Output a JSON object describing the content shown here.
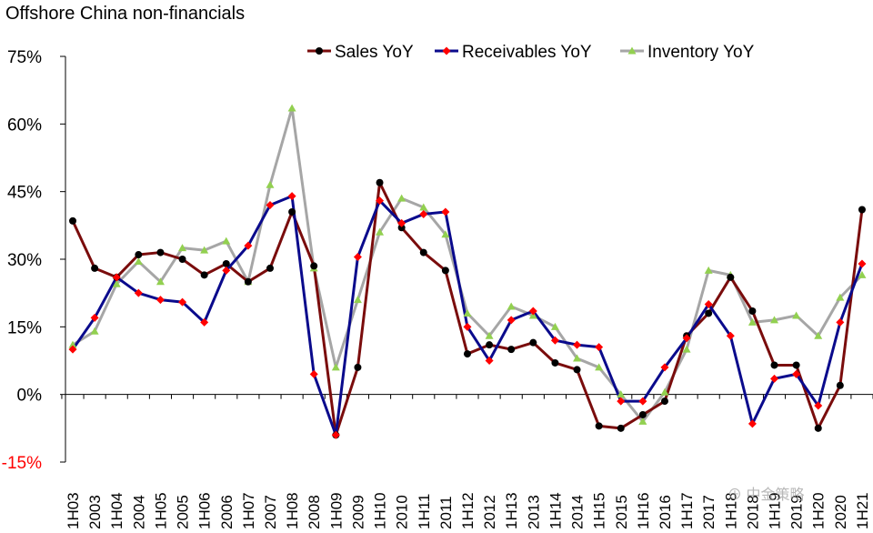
{
  "chart_data": {
    "type": "line",
    "title": "Offshore China non-financials",
    "xlabel": "",
    "ylabel": "",
    "ylim": [
      -15,
      75
    ],
    "yticks": [
      "75%",
      "60%",
      "45%",
      "30%",
      "15%",
      "0%",
      "-15%"
    ],
    "ytick_values": [
      75,
      60,
      45,
      30,
      15,
      0,
      -15
    ],
    "legend_position": "top-right",
    "grid": false,
    "categories": [
      "1H03",
      "2003",
      "1H04",
      "2004",
      "1H05",
      "2005",
      "1H06",
      "2006",
      "1H07",
      "2007",
      "1H08",
      "2008",
      "1H09",
      "2009",
      "1H10",
      "2010",
      "1H11",
      "2011",
      "1H12",
      "2012",
      "1H13",
      "2013",
      "1H14",
      "2014",
      "1H15",
      "2015",
      "1H16",
      "2016",
      "1H17",
      "2017",
      "1H18",
      "2018",
      "1H19",
      "2019",
      "1H20",
      "2020",
      "1H21"
    ],
    "series": [
      {
        "name": "Sales YoY",
        "color": "#7a0c0c",
        "marker": "circle",
        "marker_color": "#000000",
        "values": [
          38.5,
          28,
          26,
          31,
          31.5,
          30,
          26.5,
          29,
          25,
          28,
          40.5,
          28.5,
          -9,
          6,
          47,
          37,
          31.5,
          27.5,
          9,
          11,
          10,
          11.5,
          7,
          5.5,
          -7,
          -7.5,
          -4.5,
          -1.5,
          13,
          18,
          26,
          18.5,
          6.5,
          6.5,
          -7.5,
          2,
          41
        ]
      },
      {
        "name": "Receivables YoY",
        "color": "#0a0a8c",
        "marker": "diamond",
        "marker_color": "#ff0000",
        "values": [
          10,
          17,
          26,
          22.5,
          21,
          20.5,
          16,
          27.5,
          33,
          42,
          44,
          4.5,
          -9,
          30.5,
          43,
          38,
          40,
          40.5,
          15,
          7.5,
          16.5,
          18.5,
          12,
          11,
          10.5,
          -1.5,
          -1.5,
          6,
          12.5,
          20,
          13,
          -6.5,
          3.5,
          4.5,
          -2.5,
          16,
          29
        ]
      },
      {
        "name": "Inventory YoY",
        "color": "#a6a6a6",
        "marker": "triangle",
        "marker_color": "#92d050",
        "values": [
          11,
          14,
          24.5,
          29.5,
          25,
          32.5,
          32,
          34,
          25,
          46.5,
          63.5,
          28,
          6,
          21,
          36,
          43.5,
          41.5,
          35.5,
          18,
          13,
          19.5,
          17.5,
          15,
          8,
          6,
          0,
          -6,
          0.5,
          10,
          27.5,
          26.5,
          16,
          16.5,
          17.5,
          13,
          21.5,
          26.5
        ]
      }
    ]
  }
}
